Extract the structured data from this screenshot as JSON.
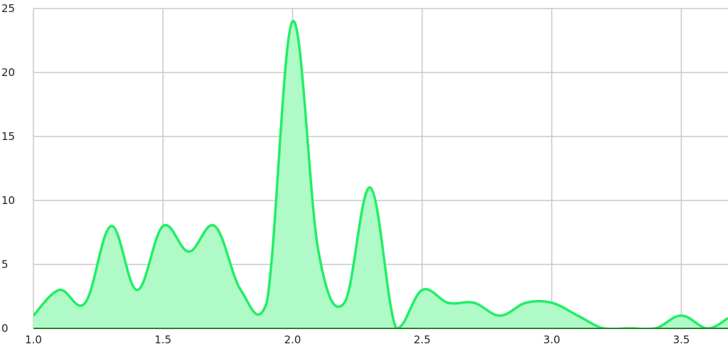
{
  "chart_data": {
    "type": "area",
    "title": "",
    "xlabel": "",
    "ylabel": "",
    "xlim": [
      1.0,
      3.68
    ],
    "ylim": [
      0,
      25
    ],
    "x_ticks": [
      "1.0",
      "1.5",
      "2.0",
      "2.5",
      "3.0",
      "3.5"
    ],
    "y_ticks": [
      "0",
      "5",
      "10",
      "15",
      "20",
      "25"
    ],
    "grid": true,
    "colors": {
      "line": "#22ee66",
      "fill": "#b0fac8",
      "axis": "#2e7d32",
      "grid": "#c8c8c8"
    },
    "x": [
      1.0,
      1.1,
      1.2,
      1.3,
      1.4,
      1.5,
      1.6,
      1.7,
      1.8,
      1.9,
      2.0,
      2.1,
      2.2,
      2.3,
      2.4,
      2.5,
      2.6,
      2.7,
      2.8,
      2.9,
      3.0,
      3.1,
      3.2,
      3.3,
      3.4,
      3.5,
      3.6,
      3.68
    ],
    "values": [
      1,
      3,
      2,
      8,
      3,
      8,
      6,
      8,
      3,
      2,
      24,
      6,
      2,
      11,
      0,
      3,
      2,
      2,
      1,
      2,
      2,
      1,
      0,
      0,
      0,
      1,
      0,
      0.8
    ]
  }
}
